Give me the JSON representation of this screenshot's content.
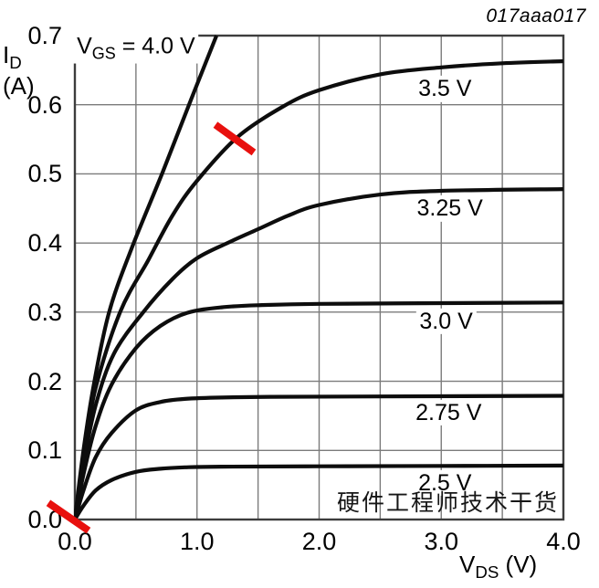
{
  "figure_id": "017aaa017",
  "watermark_text": "硬件工程师技术干货",
  "colors": {
    "curve": "#0d0d0d",
    "grid": "#7b7b7b",
    "border": "#3d3d3d",
    "annotation_red": "#e8100e",
    "text": "#0a0a0a"
  },
  "chart_data": {
    "type": "line",
    "title": "",
    "grid": true,
    "legend": "labels-on-curves",
    "x_axis": {
      "label_main": "V",
      "label_sub": "DS",
      "label_unit": " (V)",
      "min": 0,
      "max": 4.0,
      "grid_step": 0.5,
      "ticks": [
        {
          "v": 0.0,
          "label": "0.0"
        },
        {
          "v": 1.0,
          "label": "1.0"
        },
        {
          "v": 2.0,
          "label": "2.0"
        },
        {
          "v": 3.0,
          "label": "3.0"
        },
        {
          "v": 4.0,
          "label": "4.0"
        }
      ]
    },
    "y_axis": {
      "label_main": "I",
      "label_sub": "D",
      "label_unit": "(A)",
      "min": 0,
      "max": 0.7,
      "grid_step": 0.1,
      "ticks": [
        {
          "v": 0.0,
          "label": "0.0"
        },
        {
          "v": 0.1,
          "label": "0.1"
        },
        {
          "v": 0.2,
          "label": "0.2"
        },
        {
          "v": 0.3,
          "label": "0.3"
        },
        {
          "v": 0.4,
          "label": "0.4"
        },
        {
          "v": 0.5,
          "label": "0.5"
        },
        {
          "v": 0.6,
          "label": "0.6"
        },
        {
          "v": 0.7,
          "label": "0.7"
        }
      ]
    },
    "series": [
      {
        "name": "VGS = 4.0 V",
        "vgs": 4.0,
        "label_parts": {
          "main": "V",
          "sub": "GS",
          "rest": " = 4.0 V"
        },
        "label_at": [
          0.5,
          0.682
        ],
        "points": [
          [
            0,
            0
          ],
          [
            0.07,
            0.1
          ],
          [
            0.16,
            0.2
          ],
          [
            0.28,
            0.3
          ],
          [
            0.46,
            0.39
          ],
          [
            0.72,
            0.503
          ],
          [
            0.95,
            0.607
          ],
          [
            1.16,
            0.7
          ]
        ]
      },
      {
        "name": "3.5 V",
        "vgs": 3.5,
        "label": "3.5 V",
        "label_at": [
          3.03,
          0.623
        ],
        "points": [
          [
            0,
            0
          ],
          [
            0.07,
            0.09
          ],
          [
            0.17,
            0.19
          ],
          [
            0.37,
            0.3
          ],
          [
            0.6,
            0.375
          ],
          [
            0.8,
            0.44
          ],
          [
            1.0,
            0.49
          ],
          [
            1.33,
            0.553
          ],
          [
            1.7,
            0.597
          ],
          [
            2.0,
            0.621
          ],
          [
            2.5,
            0.644
          ],
          [
            3.0,
            0.654
          ],
          [
            3.5,
            0.66
          ],
          [
            4.0,
            0.663
          ]
        ]
      },
      {
        "name": "3.25 V",
        "vgs": 3.25,
        "label": "3.25 V",
        "label_at": [
          3.07,
          0.45
        ],
        "points": [
          [
            0,
            0
          ],
          [
            0.07,
            0.08
          ],
          [
            0.17,
            0.165
          ],
          [
            0.32,
            0.24
          ],
          [
            0.56,
            0.3
          ],
          [
            0.8,
            0.348
          ],
          [
            1.0,
            0.378
          ],
          [
            1.25,
            0.4
          ],
          [
            1.5,
            0.42
          ],
          [
            1.75,
            0.44
          ],
          [
            2.0,
            0.455
          ],
          [
            2.5,
            0.47
          ],
          [
            3.0,
            0.4755
          ],
          [
            4.0,
            0.478
          ]
        ]
      },
      {
        "name": "3.0 V",
        "vgs": 3.0,
        "label": "3.0 V",
        "label_at": [
          3.04,
          0.287
        ],
        "points": [
          [
            0,
            0
          ],
          [
            0.07,
            0.065
          ],
          [
            0.17,
            0.135
          ],
          [
            0.3,
            0.195
          ],
          [
            0.5,
            0.248
          ],
          [
            0.7,
            0.28
          ],
          [
            0.92,
            0.299
          ],
          [
            1.2,
            0.307
          ],
          [
            1.5,
            0.31
          ],
          [
            2.0,
            0.312
          ],
          [
            3.0,
            0.313
          ],
          [
            4.0,
            0.314
          ]
        ]
      },
      {
        "name": "2.75 V",
        "vgs": 2.75,
        "label": "2.75 V",
        "label_at": [
          3.06,
          0.155
        ],
        "points": [
          [
            0,
            0
          ],
          [
            0.07,
            0.042
          ],
          [
            0.17,
            0.09
          ],
          [
            0.3,
            0.125
          ],
          [
            0.5,
            0.158
          ],
          [
            0.7,
            0.17
          ],
          [
            0.9,
            0.1745
          ],
          [
            1.2,
            0.1765
          ],
          [
            1.6,
            0.1775
          ],
          [
            2.5,
            0.178
          ],
          [
            4.0,
            0.179
          ]
        ]
      },
      {
        "name": "2.5 V",
        "vgs": 2.5,
        "label": "2.5 V",
        "label_at": [
          3.03,
          0.053
        ],
        "points": [
          [
            0,
            0
          ],
          [
            0.07,
            0.02
          ],
          [
            0.17,
            0.042
          ],
          [
            0.3,
            0.057
          ],
          [
            0.5,
            0.069
          ],
          [
            0.7,
            0.0735
          ],
          [
            0.9,
            0.0755
          ],
          [
            1.2,
            0.0765
          ],
          [
            2.0,
            0.077
          ],
          [
            3.0,
            0.0775
          ],
          [
            4.0,
            0.078
          ]
        ]
      }
    ],
    "annotations": [
      {
        "type": "segment",
        "name": "red-mark-on-3.5V-curve",
        "from": [
          1.151,
          0.571
        ],
        "to": [
          1.465,
          0.531
        ]
      },
      {
        "type": "segment",
        "name": "red-mark-at-origin",
        "from": [
          -0.217,
          0.024
        ],
        "to": [
          0.112,
          -0.016
        ]
      }
    ]
  }
}
